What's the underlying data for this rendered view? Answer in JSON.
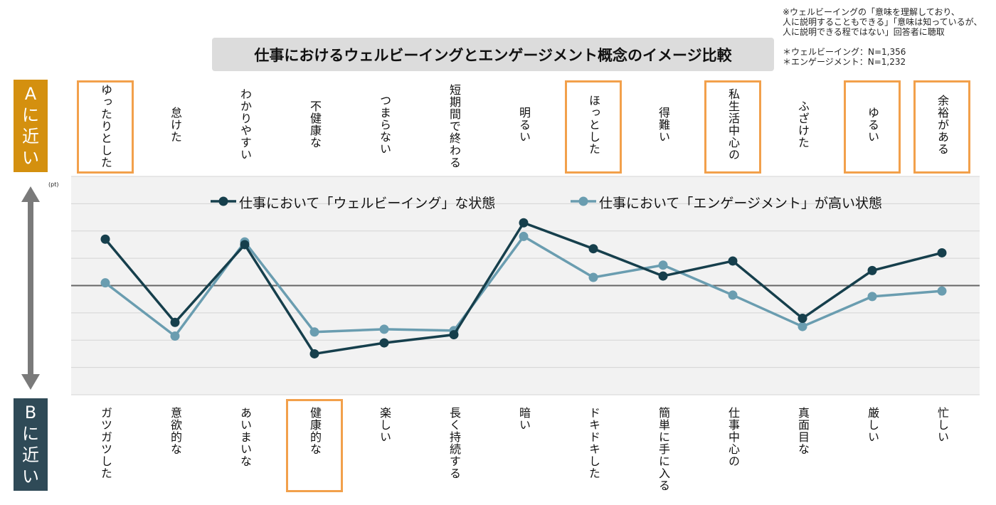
{
  "title": "仕事におけるウェルビーイングとエンゲージメント概念のイメージ比較",
  "notes": [
    "※ウェルビーイングの「意味を理解しており、",
    "人に説明することもできる」「意味は知っているが、",
    "人に説明できる程ではない」回答者に聴取",
    "＊ウェルビーイング：N=1,356",
    "＊エンゲージメント：N=1,232"
  ],
  "side_labels": {
    "a": [
      "A",
      "に",
      "近",
      "い"
    ],
    "b": [
      "B",
      "に",
      "近",
      "い"
    ]
  },
  "colors": {
    "wellbeing": "#163f4c",
    "engagement": "#6a9db0",
    "highlight": "#f2a04b",
    "a_box": "#d4900f",
    "b_box": "#2f4a57"
  },
  "icons": {
    "axis_arrow": "double-headed-vertical-arrow-icon"
  },
  "chart_data": {
    "type": "line",
    "unit_label": "(pt)",
    "title": "仕事におけるウェルビーイングとエンゲージメント概念のイメージ比較",
    "xlabel": "",
    "ylabel": "",
    "grid": true,
    "legend_position": "top",
    "ylim": [
      -4,
      4
    ],
    "top_labels": [
      "ゆったりとした",
      "怠けた",
      "わかりやすい",
      "不健康な",
      "つまらない",
      "短期間で終わる",
      "明るい",
      "ほっとした",
      "得難い",
      "私生活中心の",
      "ふざけた",
      "ゆるい",
      "余裕がある"
    ],
    "bottom_labels": [
      "ガツガツした",
      "意欲的な",
      "あいまいな",
      "健康的な",
      "楽しい",
      "長く持続する",
      "暗い",
      "ドキドキした",
      "簡単に手に入る",
      "仕事中心の",
      "真面目な",
      "厳しい",
      "忙しい"
    ],
    "highlight_top": [
      0,
      7,
      9,
      11,
      12
    ],
    "highlight_bottom": [
      3
    ],
    "series": [
      {
        "name": "仕事において「ウェルビーイング」な状態",
        "values": [
          1.7,
          -1.35,
          1.5,
          -2.5,
          -2.1,
          -1.8,
          2.3,
          1.35,
          0.35,
          0.9,
          -1.2,
          0.55,
          1.2
        ]
      },
      {
        "name": "仕事において「エンゲージメント」が高い状態",
        "values": [
          0.1,
          -1.85,
          1.6,
          -1.7,
          -1.6,
          -1.65,
          1.8,
          0.3,
          0.75,
          -0.35,
          -1.5,
          -0.4,
          -0.2
        ]
      }
    ]
  }
}
